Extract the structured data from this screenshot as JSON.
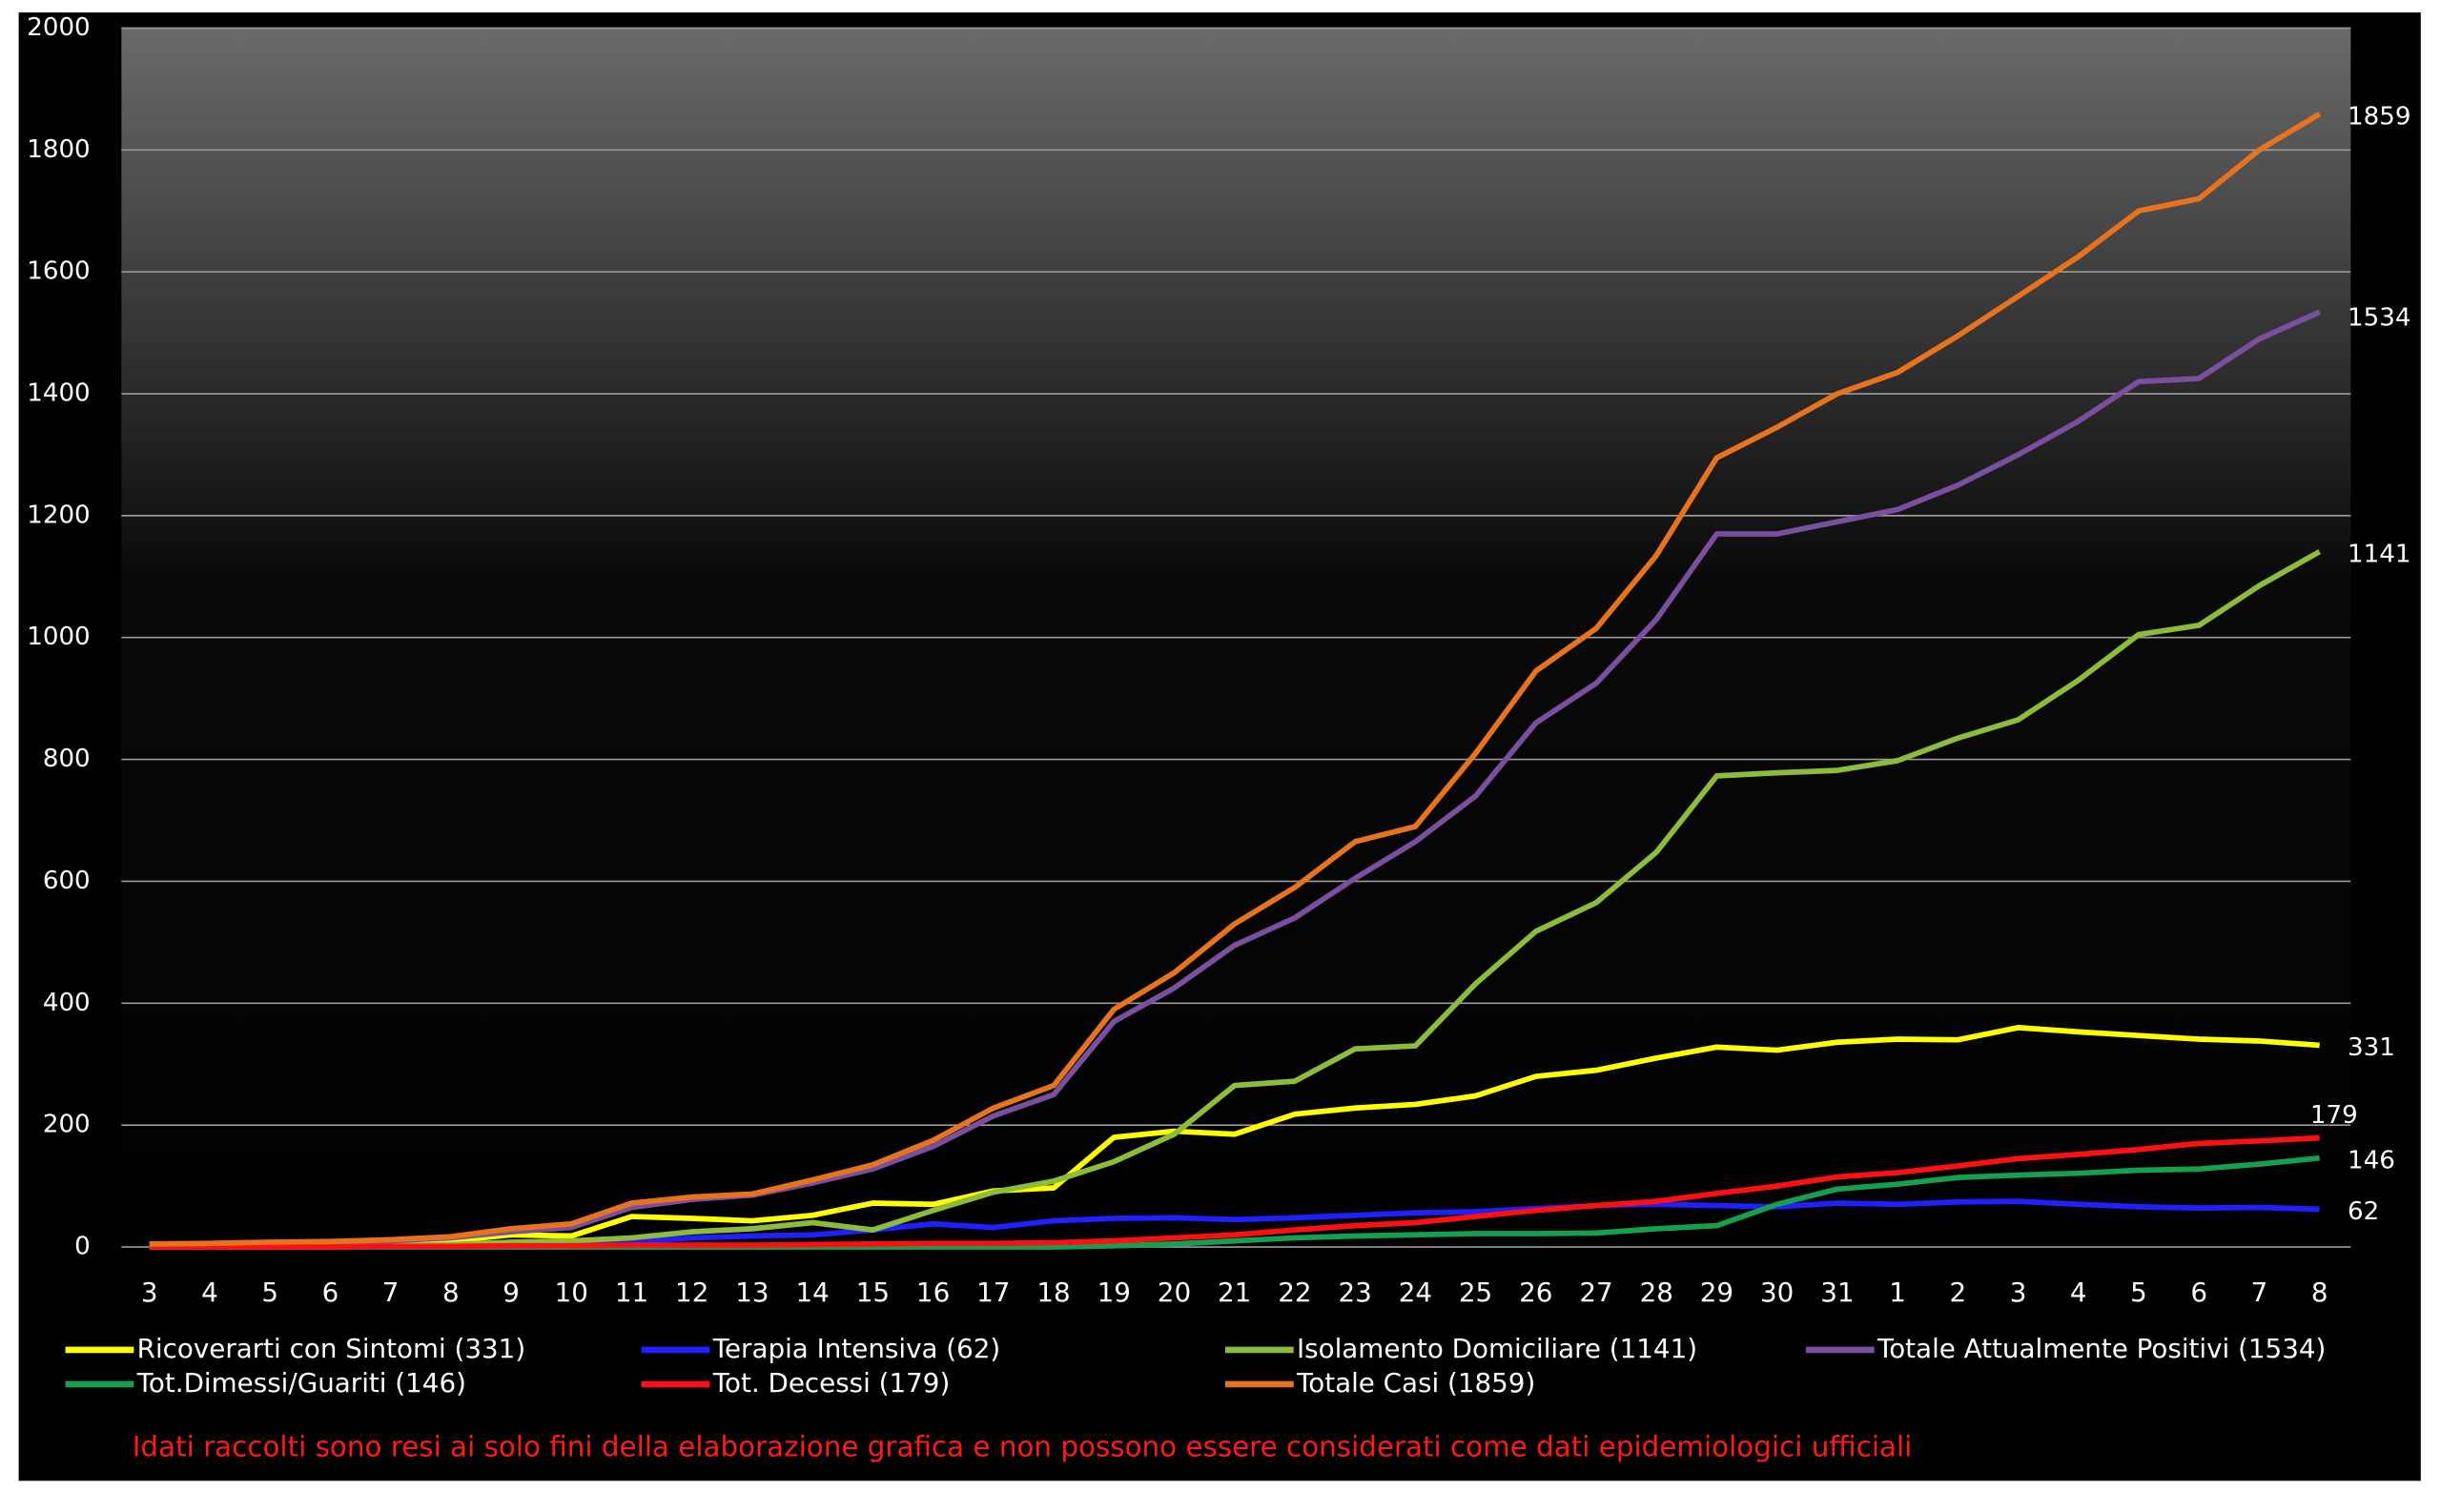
{
  "chart_data": {
    "type": "line",
    "categories": [
      "3",
      "4",
      "5",
      "6",
      "7",
      "8",
      "9",
      "10",
      "11",
      "12",
      "13",
      "14",
      "15",
      "16",
      "17",
      "18",
      "19",
      "20",
      "21",
      "22",
      "23",
      "24",
      "25",
      "26",
      "27",
      "28",
      "29",
      "30",
      "31",
      "1",
      "2",
      "3",
      "4",
      "5",
      "6",
      "7",
      "8"
    ],
    "series": [
      {
        "name": "Ricoverarti con Sintomi (331)",
        "color": "#ffff00",
        "values": [
          3,
          4,
          5,
          6,
          7,
          10,
          20,
          18,
          50,
          47,
          43,
          52,
          72,
          70,
          92,
          97,
          180,
          190,
          185,
          218,
          228,
          234,
          248,
          280,
          290,
          310,
          328,
          323,
          336,
          341,
          340,
          360,
          353,
          347,
          341,
          338,
          331
        ]
      },
      {
        "name": "Terapia Intensiva (62)",
        "color": "#2020ff",
        "values": [
          1,
          1,
          1,
          1,
          2,
          3,
          5,
          5,
          8,
          15,
          18,
          20,
          28,
          38,
          32,
          43,
          47,
          48,
          45,
          48,
          52,
          56,
          58,
          63,
          68,
          70,
          68,
          66,
          72,
          70,
          74,
          75,
          70,
          66,
          64,
          65,
          62
        ]
      },
      {
        "name": "Isolamento Domiciliare (1141)",
        "color": "#8dbb3c",
        "values": [
          0,
          0,
          0,
          0,
          2,
          4,
          8,
          10,
          15,
          25,
          30,
          40,
          28,
          60,
          90,
          108,
          140,
          185,
          265,
          272,
          325,
          330,
          432,
          518,
          565,
          648,
          773,
          778,
          782,
          798,
          835,
          865,
          930,
          1005,
          1020,
          1085,
          1141
        ]
      },
      {
        "name": "Totale Attualmente Positivi (1534)",
        "color": "#7a4fa0",
        "values": [
          5,
          5,
          7,
          8,
          10,
          15,
          25,
          32,
          65,
          78,
          85,
          105,
          128,
          165,
          215,
          250,
          370,
          425,
          495,
          540,
          605,
          665,
          740,
          860,
          925,
          1030,
          1170,
          1170,
          1190,
          1210,
          1250,
          1300,
          1355,
          1420,
          1425,
          1490,
          1534
        ]
      },
      {
        "name": "Tot.Dimessi/Guariti (146)",
        "color": "#14a050",
        "values": [
          0,
          0,
          0,
          0,
          0,
          0,
          0,
          0,
          0,
          0,
          0,
          0,
          0,
          0,
          0,
          0,
          2,
          5,
          10,
          15,
          18,
          20,
          22,
          22,
          23,
          30,
          35,
          70,
          95,
          103,
          114,
          118,
          121,
          126,
          128,
          136,
          146
        ]
      },
      {
        "name": "Tot. Decessi (179)",
        "color": "#ff1010",
        "values": [
          0,
          0,
          0,
          0,
          1,
          1,
          2,
          2,
          3,
          3,
          3,
          4,
          5,
          6,
          6,
          7,
          10,
          15,
          20,
          28,
          35,
          40,
          50,
          60,
          68,
          75,
          88,
          100,
          115,
          122,
          133,
          145,
          152,
          160,
          170,
          174,
          179
        ]
      },
      {
        "name": "Totale Casi (1859)",
        "color": "#e8731e",
        "values": [
          5,
          6,
          8,
          9,
          12,
          17,
          30,
          38,
          72,
          82,
          87,
          110,
          135,
          175,
          228,
          265,
          390,
          450,
          530,
          590,
          665,
          690,
          810,
          945,
          1015,
          1135,
          1295,
          1345,
          1400,
          1435,
          1495,
          1560,
          1625,
          1700,
          1720,
          1800,
          1859
        ]
      }
    ],
    "ylim": [
      0,
      2000
    ],
    "yticks": [
      0,
      200,
      400,
      600,
      800,
      1000,
      1200,
      1400,
      1600,
      1800,
      2000
    ],
    "grid": true,
    "note": "Idati raccolti  sono resi ai solo fini della  elaborazione  grafica  e non possono essere considerati come dati epidemiologici  ufficiali"
  }
}
